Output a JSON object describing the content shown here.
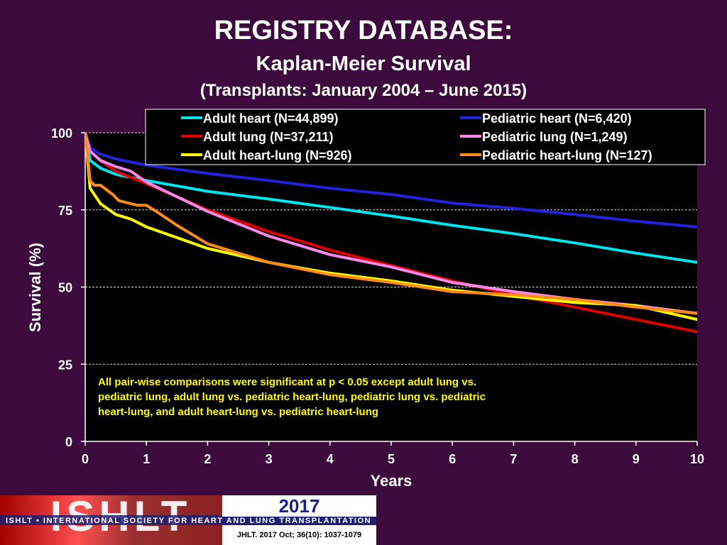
{
  "header": {
    "title": "REGISTRY DATABASE:",
    "subtitle": "Kaplan-Meier Survival",
    "subtitle2": "(Transplants: January 2004 – June 2015)"
  },
  "footer": {
    "logo_text": "ISHLT",
    "org_name": "ISHLT • INTERNATIONAL SOCIETY FOR HEART AND LUNG TRANSPLANTATION",
    "year": "2017",
    "citation": "JHLT. 2017 Oct; 36(10): 1037-1079"
  },
  "colors": {
    "background": "#3d0a3e",
    "plot_background": "#000000",
    "note_text": "#ffff00"
  },
  "chart_data": {
    "type": "line",
    "title": "REGISTRY DATABASE:",
    "xlabel": "Years",
    "ylabel": "Survival (%)",
    "xlim": [
      0,
      10
    ],
    "ylim": [
      0,
      100
    ],
    "xticks": [
      0,
      1,
      2,
      3,
      4,
      5,
      6,
      7,
      8,
      9,
      10
    ],
    "yticks": [
      0,
      25,
      50,
      75,
      100
    ],
    "grid": "horizontal dashed",
    "legend_position": "top-right",
    "annotation": "All pair-wise comparisons were significant at p < 0.05 except adult lung vs. pediatric lung, adult lung vs. pediatric heart-lung, pediatric lung vs. pediatric heart-lung,  and adult heart-lung vs. pediatric heart-lung",
    "annotation_lines": [
      "All pair-wise comparisons were significant at p < 0.05 except adult lung vs.",
      "pediatric lung, adult lung vs. pediatric heart-lung, pediatric lung vs. pediatric",
      "heart-lung,  and adult heart-lung vs. pediatric heart-lung"
    ],
    "series": [
      {
        "name": "Adult heart (N=44,899)",
        "color": "#00e5ee",
        "x": [
          0,
          0.08,
          0.25,
          0.5,
          1,
          2,
          3,
          4,
          5,
          6,
          7,
          8,
          9,
          10
        ],
        "y": [
          100,
          91,
          88.5,
          86.5,
          84.5,
          81,
          78.5,
          75.8,
          73,
          70,
          67.3,
          64.3,
          61,
          58
        ]
      },
      {
        "name": "Pediatric heart (N=6,420)",
        "color": "#2222dd",
        "x": [
          0,
          0.08,
          0.25,
          0.5,
          1,
          2,
          3,
          4,
          5,
          6,
          7,
          8,
          9,
          10
        ],
        "y": [
          100,
          95,
          93,
          91.5,
          89.5,
          86.8,
          84.5,
          82,
          80,
          77.2,
          75.5,
          73.5,
          71.3,
          69.5
        ]
      },
      {
        "name": "Adult lung (N=37,211)",
        "color": "#e00000",
        "x": [
          0,
          0.08,
          0.25,
          0.5,
          1,
          2,
          3,
          4,
          5,
          6,
          7,
          8,
          9,
          10
        ],
        "y": [
          100,
          94,
          91,
          87.5,
          83.5,
          75,
          68,
          62,
          57,
          52,
          47.5,
          43.5,
          39.5,
          35.5
        ]
      },
      {
        "name": "Pediatric lung (N=1,249)",
        "color": "#ff88e8",
        "x": [
          0,
          0.08,
          0.25,
          0.5,
          0.75,
          1,
          2,
          3,
          4,
          5,
          6,
          7,
          8,
          9,
          10
        ],
        "y": [
          100,
          94,
          91,
          89,
          87.5,
          84,
          74.5,
          66.5,
          60.5,
          56.5,
          51.5,
          48.5,
          46,
          44,
          41.5
        ]
      },
      {
        "name": "Adult heart-lung (N=926)",
        "color": "#ffff00",
        "x": [
          0,
          0.08,
          0.25,
          0.5,
          0.75,
          1,
          2,
          3,
          4,
          5,
          6,
          7,
          8,
          9,
          10
        ],
        "y": [
          100,
          82,
          77,
          73.5,
          72,
          69.5,
          62.5,
          58,
          54.5,
          52,
          49,
          47,
          45,
          44,
          39.5
        ]
      },
      {
        "name": "Pediatric heart-lung (N=127)",
        "color": "#ff8c1a",
        "x": [
          0,
          0.08,
          0.15,
          0.25,
          0.35,
          0.45,
          0.55,
          0.65,
          0.75,
          0.85,
          1,
          1.2,
          1.5,
          2,
          3,
          4,
          5,
          6,
          7,
          8,
          9,
          10
        ],
        "y": [
          100,
          84.5,
          83,
          83,
          81.5,
          80,
          78,
          77.5,
          77,
          76.5,
          76.5,
          74,
          70,
          64,
          58,
          54,
          51.5,
          48.5,
          47.5,
          46,
          43.5,
          41.5
        ]
      }
    ]
  }
}
